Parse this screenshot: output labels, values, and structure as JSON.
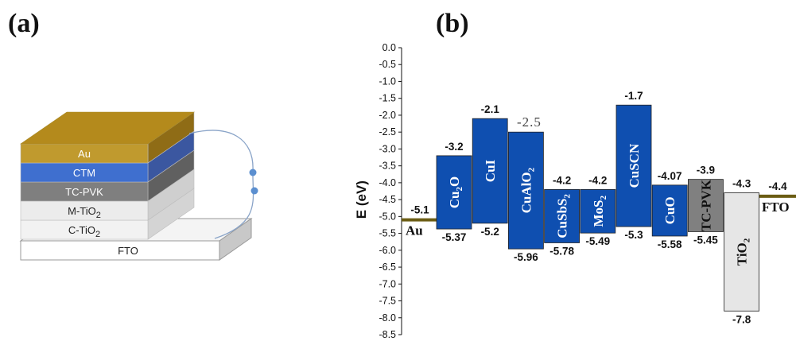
{
  "panels": {
    "a": "(a)",
    "b": "(b)"
  },
  "device_stack": {
    "layers": [
      {
        "label": "Au",
        "sub": "",
        "front": "#c09a2e",
        "top": "#b48a1c",
        "side": "#8f6c16",
        "text": "#ffffff"
      },
      {
        "label": "CTM",
        "sub": "",
        "front": "#3f6fcf",
        "top": "#3a5fb0",
        "side": "#3b57a0",
        "text": "#ffffff"
      },
      {
        "label": "TC-PVK",
        "sub": "",
        "front": "#7f7f7f",
        "top": "#6f6f6f",
        "side": "#606060",
        "text": "#ffffff"
      },
      {
        "label": "M-TiO",
        "sub": "2",
        "front": "#ececec",
        "top": "#dcdcdc",
        "side": "#cfcfcf",
        "text": "#222222"
      },
      {
        "label": "C-TiO",
        "sub": "2",
        "front": "#f2f2f2",
        "top": "#e2e2e2",
        "side": "#d4d4d4",
        "text": "#222222"
      }
    ],
    "substrate": {
      "label": "FTO",
      "front": "#ffffff",
      "top": "#f4f4f4",
      "side": "#c8c8c8",
      "text": "#222222"
    }
  },
  "chart_data": {
    "type": "bar",
    "ylabel": "E (eV)",
    "ylim": [
      -8.5,
      0
    ],
    "ytick_step": 0.5,
    "electrodes": [
      {
        "name": "Au",
        "level": -5.1,
        "label": "-5.1",
        "color": "#6b5d14"
      },
      {
        "name": "FTO",
        "level": -4.4,
        "label": "-4.4",
        "color": "#6b5d14"
      }
    ],
    "bars": [
      {
        "name": "Cu",
        "sub": "2",
        "suffix": "O",
        "cb": -3.2,
        "vb": -5.37,
        "cb_label": "-3.2",
        "vb_label": "-5.37",
        "color": "#0f4fb0",
        "text_color": "#ffffff",
        "cb_light": false
      },
      {
        "name": "CuI",
        "sub": "",
        "suffix": "",
        "cb": -2.1,
        "vb": -5.2,
        "cb_label": "-2.1",
        "vb_label": "-5.2",
        "color": "#0f4fb0",
        "text_color": "#ffffff",
        "cb_light": false
      },
      {
        "name": "CuAlO",
        "sub": "2",
        "suffix": "",
        "cb": -2.5,
        "vb": -5.96,
        "cb_label": "-2.5",
        "vb_label": "-5.96",
        "color": "#0f4fb0",
        "text_color": "#ffffff",
        "cb_light": true
      },
      {
        "name": "CuSbS",
        "sub": "2",
        "suffix": "",
        "cb": -4.2,
        "vb": -5.78,
        "cb_label": "-4.2",
        "vb_label": "-5.78",
        "color": "#0f4fb0",
        "text_color": "#ffffff",
        "cb_light": false
      },
      {
        "name": "MoS",
        "sub": "2",
        "suffix": "",
        "cb": -4.2,
        "vb": -5.49,
        "cb_label": "-4.2",
        "vb_label": "-5.49",
        "color": "#0f4fb0",
        "text_color": "#ffffff",
        "cb_light": false
      },
      {
        "name": "CuSCN",
        "sub": "",
        "suffix": "",
        "cb": -1.7,
        "vb": -5.3,
        "cb_label": "-1.7",
        "vb_label": "-5.3",
        "color": "#0f4fb0",
        "text_color": "#ffffff",
        "cb_light": false
      },
      {
        "name": "CuO",
        "sub": "",
        "suffix": "",
        "cb": -4.07,
        "vb": -5.58,
        "cb_label": "-4.07",
        "vb_label": "-5.58",
        "color": "#0f4fb0",
        "text_color": "#ffffff",
        "cb_light": false
      },
      {
        "name": "TC-PVK",
        "sub": "",
        "suffix": "",
        "cb": -3.9,
        "vb": -5.45,
        "cb_label": "-3.9",
        "vb_label": "-5.45",
        "color": "#808080",
        "text_color": "#111111",
        "cb_light": false
      },
      {
        "name": "TiO",
        "sub": "2",
        "suffix": "",
        "cb": -4.3,
        "vb": -7.8,
        "cb_label": "-4.3",
        "vb_label": "-7.8",
        "color": "#e6e6e6",
        "text_color": "#111111",
        "cb_light": false
      }
    ]
  }
}
